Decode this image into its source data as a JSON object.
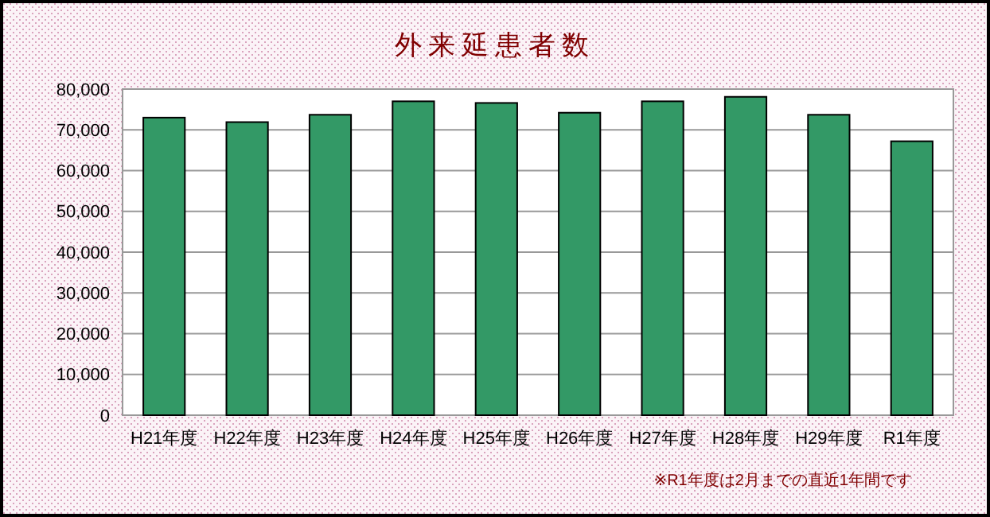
{
  "chart_data": {
    "type": "bar",
    "title": "外来延患者数",
    "categories": [
      "H21年度",
      "H22年度",
      "H23年度",
      "H24年度",
      "H25年度",
      "H26年度",
      "H27年度",
      "H28年度",
      "H29年度",
      "R1年度"
    ],
    "values": [
      73000,
      71900,
      73700,
      77000,
      76600,
      74200,
      77000,
      78100,
      73700,
      67200
    ],
    "color": "#339966",
    "ylim": [
      0,
      80000
    ],
    "yticks": [
      {
        "value": 0,
        "label": "0"
      },
      {
        "value": 10000,
        "label": "10,000"
      },
      {
        "value": 20000,
        "label": "20,000"
      },
      {
        "value": 30000,
        "label": "30,000"
      },
      {
        "value": 40000,
        "label": "40,000"
      },
      {
        "value": 50000,
        "label": "50,000"
      },
      {
        "value": 60000,
        "label": "60,000"
      },
      {
        "value": 70000,
        "label": "70,000"
      },
      {
        "value": 80000,
        "label": "80,000"
      }
    ],
    "grid": "y",
    "annotations": [
      "※R1年度は2月までの直近1年間です"
    ]
  }
}
